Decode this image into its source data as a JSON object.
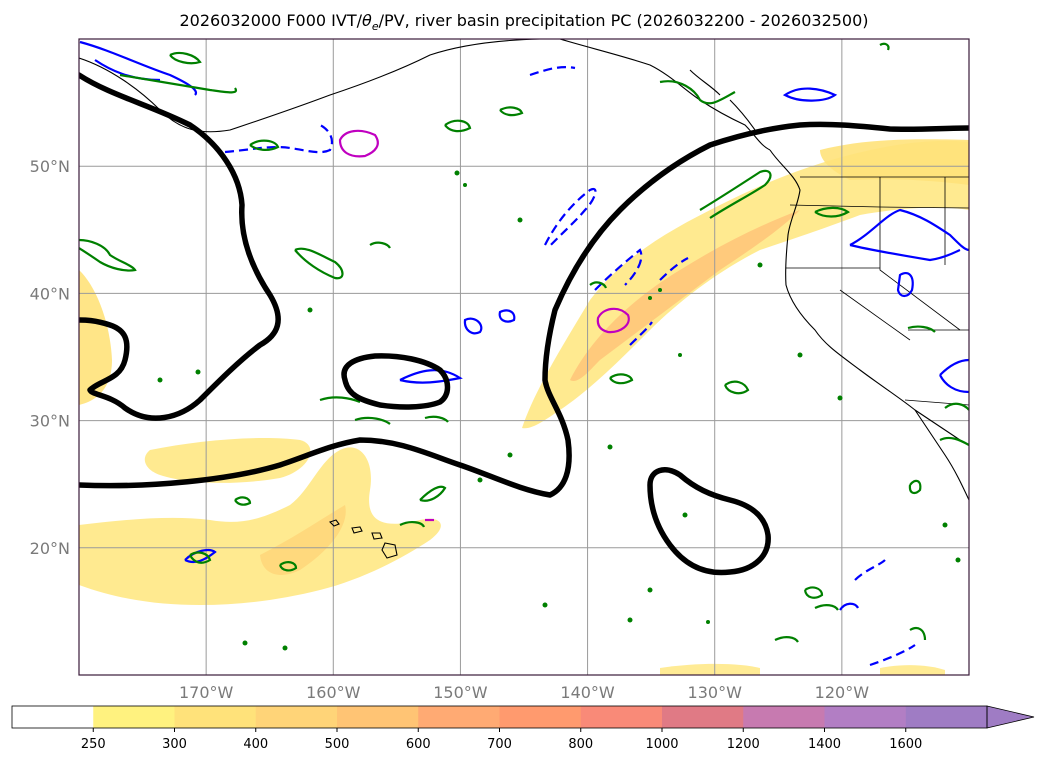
{
  "title": "2026032000 F000 IVT/θe/PV, river basin precipitation PC (2026032200 - 2026032500)",
  "title_parts": {
    "prefix": "2026032000 F000 IVT/",
    "theta": "θ",
    "sub": "e",
    "suffix": "/PV, river basin precipitation PC (2026032200 - 2026032500)"
  },
  "map": {
    "lon_range": [
      -180,
      -110
    ],
    "lat_range": [
      10,
      60
    ],
    "lon_ticks": [
      {
        "lon": -170,
        "label": "170°W"
      },
      {
        "lon": -160,
        "label": "160°W"
      },
      {
        "lon": -150,
        "label": "150°W"
      },
      {
        "lon": -140,
        "label": "140°W"
      },
      {
        "lon": -130,
        "label": "130°W"
      },
      {
        "lon": -120,
        "label": "120°W"
      }
    ],
    "lat_ticks": [
      {
        "lat": 20,
        "label": "20°N"
      },
      {
        "lat": 30,
        "label": "30°N"
      },
      {
        "lat": 40,
        "label": "40°N"
      },
      {
        "lat": 50,
        "label": "50°N"
      }
    ],
    "gridlines": true
  },
  "colorbar": {
    "extend": "max",
    "levels": [
      "250",
      "300",
      "400",
      "500",
      "600",
      "700",
      "800",
      "1000",
      "1200",
      "1400",
      "1600"
    ],
    "colors": [
      "#ffffff",
      "#fff27f",
      "#ffe27a",
      "#ffd478",
      "#ffc474",
      "#ffaa73",
      "#ff9a6e",
      "#f98a78",
      "#e07a85",
      "#c77ab0",
      "#b27ec4",
      "#9f7cc4"
    ]
  },
  "colors": {
    "pv_contour": "#000000",
    "theta_e_contour": "#008000",
    "blue_contour": "#0000ff",
    "magenta_contour": "#c000c0",
    "ivt_shading": "#ffe27a"
  }
}
